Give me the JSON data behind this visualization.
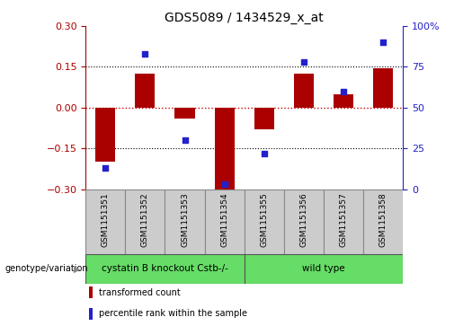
{
  "title": "GDS5089 / 1434529_x_at",
  "samples": [
    "GSM1151351",
    "GSM1151352",
    "GSM1151353",
    "GSM1151354",
    "GSM1151355",
    "GSM1151356",
    "GSM1151357",
    "GSM1151358"
  ],
  "transformed_count": [
    -0.2,
    0.125,
    -0.04,
    -0.3,
    -0.08,
    0.125,
    0.05,
    0.145
  ],
  "percentile_rank": [
    13,
    83,
    30,
    3,
    22,
    78,
    60,
    90
  ],
  "group1_label": "cystatin B knockout Cstb-/-",
  "group1_indices": [
    0,
    1,
    2,
    3
  ],
  "group2_label": "wild type",
  "group2_indices": [
    4,
    5,
    6,
    7
  ],
  "group_label_prefix": "genotype/variation",
  "legend_red": "transformed count",
  "legend_blue": "percentile rank within the sample",
  "ylim_left": [
    -0.3,
    0.3
  ],
  "ylim_right": [
    0,
    100
  ],
  "yticks_left": [
    -0.3,
    -0.15,
    0.0,
    0.15,
    0.3
  ],
  "yticks_right": [
    0,
    25,
    50,
    75,
    100
  ],
  "bar_color": "#AA0000",
  "dot_color": "#2222CC",
  "grid_color": "#000000",
  "zero_line_color": "#CC0000",
  "group_color": "#66DD66",
  "sample_box_color": "#CCCCCC",
  "bg_color": "#FFFFFF",
  "bar_width": 0.5
}
